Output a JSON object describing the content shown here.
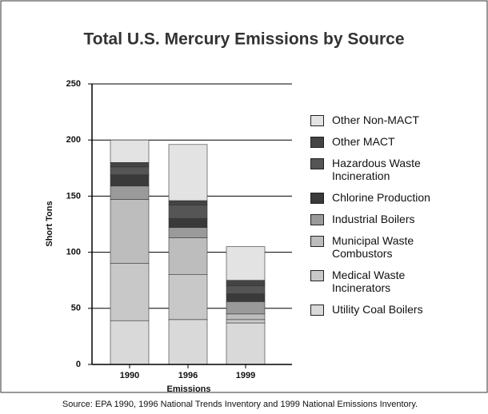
{
  "chart_data": {
    "type": "stacked_bar",
    "title": "Total U.S. Mercury Emissions by Source",
    "xlabel": "Emissions",
    "ylabel": "Short Tons",
    "source": "Source: EPA 1990, 1996 National Trends Inventory and 1999 National Emissions Inventory.",
    "categories": [
      "1990",
      "1996",
      "1999"
    ],
    "ylim": [
      0,
      250
    ],
    "yticks": [
      0,
      50,
      100,
      150,
      200,
      250
    ],
    "grid": true,
    "series": [
      {
        "name": "Utility Coal Boilers",
        "color": "#d9d9d9",
        "values": [
          39,
          40,
          37
        ]
      },
      {
        "name": "Medical Waste Incinerators",
        "color": "#c8c8c8",
        "values": [
          51,
          40,
          3
        ]
      },
      {
        "name": "Municipal Waste Combustors",
        "color": "#bdbdbd",
        "values": [
          57,
          33,
          5
        ]
      },
      {
        "name": "Industrial Boilers",
        "color": "#9a9a9a",
        "values": [
          12,
          9,
          11
        ]
      },
      {
        "name": "Chlorine Production",
        "color": "#3a3a3a",
        "values": [
          10,
          8,
          7
        ]
      },
      {
        "name": "Hazardous Waste Incineration",
        "color": "#555555",
        "values": [
          7,
          12,
          7
        ]
      },
      {
        "name": "Other MACT",
        "color": "#444444",
        "values": [
          4,
          4,
          5
        ]
      },
      {
        "name": "Other Non-MACT",
        "color": "#e3e3e3",
        "values": [
          20,
          50,
          30
        ]
      }
    ]
  }
}
